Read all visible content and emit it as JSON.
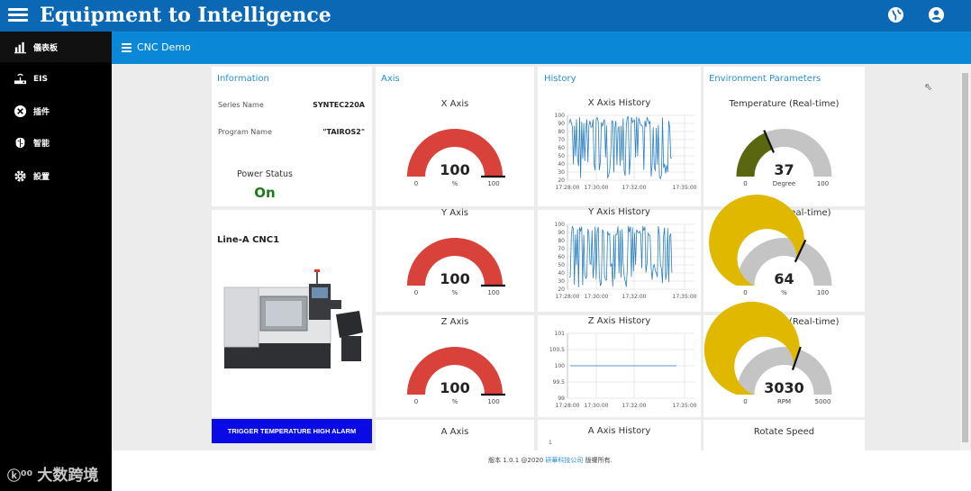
{
  "header": {
    "title": "Equipment to Intelligence"
  },
  "sidebar": {
    "items": [
      {
        "label": "儀表板",
        "icon": "chart-icon"
      },
      {
        "label": "EIS",
        "icon": "network-icon"
      },
      {
        "label": "插件",
        "icon": "plugin-icon"
      },
      {
        "label": "智能",
        "icon": "brain-icon"
      },
      {
        "label": "設置",
        "icon": "gear-icon"
      }
    ]
  },
  "subheader": {
    "title": "CNC Demo"
  },
  "info": {
    "title": "Information",
    "series_label": "Series Name",
    "series_value": "SYNTEC220A",
    "program_label": "Program Name",
    "program_value": "\"TAIROS2\"",
    "power_label": "Power Status",
    "power_value": "On",
    "machine_title": "Line-A CNC1",
    "alarm_button": "TRIGGER TEMPERATURE HIGH ALARM"
  },
  "axis": {
    "title": "Axis",
    "gauges": [
      {
        "title": "X Axis",
        "value": 100,
        "display": "100",
        "unit": "%",
        "min": 0,
        "max": 100,
        "min_label": "0",
        "max_label": "100",
        "color": "#d9423a"
      },
      {
        "title": "Y Axis",
        "value": 100,
        "display": "100",
        "unit": "%",
        "min": 0,
        "max": 100,
        "min_label": "0",
        "max_label": "100",
        "color": "#d9423a"
      },
      {
        "title": "Z Axis",
        "value": 100,
        "display": "100",
        "unit": "%",
        "min": 0,
        "max": 100,
        "min_label": "0",
        "max_label": "100",
        "color": "#d9423a"
      }
    ],
    "next_title": "A Axis"
  },
  "history": {
    "title": "History",
    "charts": [
      {
        "title": "X Axis History",
        "yticks": [
          "100",
          "90",
          "80",
          "70",
          "60",
          "50",
          "40",
          "30",
          "20"
        ],
        "xticks": [
          "17:28:00",
          "17:30:00",
          "17:32:00",
          "17:35:00"
        ]
      },
      {
        "title": "Y Axis History",
        "yticks": [
          "100",
          "90",
          "80",
          "70",
          "60",
          "50",
          "40",
          "30",
          "20"
        ],
        "xticks": [
          "17:28:00",
          "17:30:00",
          "17:32:00",
          "17:35:00"
        ]
      },
      {
        "title": "Z Axis History",
        "yticks": [
          "101",
          "100.5",
          "100",
          "99.5",
          "99"
        ],
        "xticks": [
          "17:28:00",
          "17:30:00",
          "17:32:00",
          "17:35:00"
        ]
      }
    ],
    "next_title": "A Axis History",
    "next_tick": "1"
  },
  "environment": {
    "title": "Environment Parameters",
    "gauges": [
      {
        "title": "Temperature (Real-time)",
        "value": 37,
        "display": "37",
        "unit": "Degree",
        "min": 0,
        "max": 100,
        "min_label": "0",
        "max_label": "100",
        "color": "#5a6610"
      },
      {
        "title": "Humidity (Real-time)",
        "value": 64,
        "display": "64",
        "unit": "%",
        "min": 0,
        "max": 100,
        "min_label": "0",
        "max_label": "100",
        "color": "#e0b800"
      },
      {
        "title": "Motor Speed (Real-time)",
        "value": 3030,
        "display": "3030",
        "unit": "RPM",
        "min": 0,
        "max": 5000,
        "min_label": "0",
        "max_label": "5000",
        "color": "#e0b800"
      }
    ],
    "next_title": "Rotate Speed"
  },
  "footer": {
    "version": "版本 1.0.1 @2020 ",
    "company": "研華科技公司",
    "rights": " 版權所有."
  },
  "watermark": "大数跨境",
  "colors": {
    "topbar": "#0a68b4",
    "subbar": "#0a87d6",
    "accent": "#2a8fd6",
    "power_on": "#1e7a1e",
    "gauge_track": "#c4c4c4",
    "line": "#2a7fc0"
  }
}
